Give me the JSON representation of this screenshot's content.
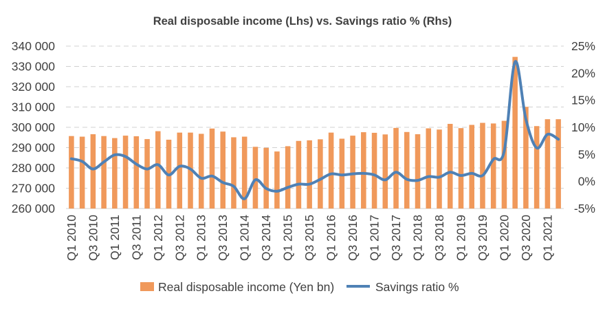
{
  "chart_data": {
    "type": "bar+line",
    "title": "Real disposable income (Lhs) vs. Savings ratio % (Rhs)",
    "x": [
      "Q1 2010",
      "Q2 2010",
      "Q3 2010",
      "Q4 2010",
      "Q1 2011",
      "Q2 2011",
      "Q3 2011",
      "Q4 2011",
      "Q1 2012",
      "Q2 2012",
      "Q3 2012",
      "Q4 2012",
      "Q1 2013",
      "Q2 2013",
      "Q3 2013",
      "Q4 2013",
      "Q1 2014",
      "Q2 2014",
      "Q3 2014",
      "Q4 2014",
      "Q1 2015",
      "Q2 2015",
      "Q3 2015",
      "Q4 2015",
      "Q1 2016",
      "Q2 2016",
      "Q3 2016",
      "Q4 2016",
      "Q1 2017",
      "Q2 2017",
      "Q3 2017",
      "Q4 2017",
      "Q1 2018",
      "Q2 2018",
      "Q3 2018",
      "Q4 2018",
      "Q1 2019",
      "Q2 2019",
      "Q3 2019",
      "Q4 2019",
      "Q1 2020",
      "Q2 2020",
      "Q3 2020",
      "Q4 2020",
      "Q1 2021",
      "Q2 2021"
    ],
    "x_tick_labels": [
      "Q1 2010",
      "Q3 2010",
      "Q1 2011",
      "Q3 2011",
      "Q1 2012",
      "Q3 2012",
      "Q1 2013",
      "Q3 2013",
      "Q1 2014",
      "Q3 2014",
      "Q1 2015",
      "Q3 2015",
      "Q1 2016",
      "Q3 2016",
      "Q1 2017",
      "Q3 2017",
      "Q1 2018",
      "Q3 2018",
      "Q1 2019",
      "Q3 2019",
      "Q1 2020",
      "Q3 2020",
      "Q1 2021"
    ],
    "series": [
      {
        "name": "Real disposable income (Yen bn)",
        "type": "bar",
        "axis": "left",
        "color": "#f0995b",
        "values": [
          295700,
          295400,
          296600,
          295700,
          294700,
          295900,
          295600,
          294200,
          298100,
          293900,
          297400,
          297400,
          296800,
          299400,
          297900,
          295100,
          295400,
          290400,
          289900,
          288100,
          290700,
          293300,
          293600,
          294100,
          297400,
          294400,
          295900,
          297600,
          297300,
          296500,
          299700,
          297700,
          296600,
          299500,
          298900,
          301700,
          299600,
          301200,
          302200,
          301900,
          303200,
          334700,
          310100,
          300600,
          304000,
          304000
        ]
      },
      {
        "name": "Savings ratio %",
        "type": "line",
        "axis": "right",
        "color": "#4f81b5",
        "values": [
          4.2,
          3.7,
          2.3,
          3.6,
          4.9,
          4.6,
          3.2,
          2.3,
          3.1,
          1.2,
          2.8,
          2.3,
          0.6,
          1.0,
          -0.2,
          -0.9,
          -3.2,
          0.3,
          -1.3,
          -1.8,
          -1.1,
          -0.5,
          -0.5,
          0.4,
          1.4,
          1.2,
          1.4,
          1.5,
          1.2,
          0.3,
          1.7,
          0.4,
          0.2,
          0.9,
          0.8,
          1.7,
          1.1,
          1.5,
          1.1,
          4.1,
          5.6,
          22.1,
          11.5,
          6.2,
          8.7,
          7.8
        ]
      }
    ],
    "y_left": {
      "ticks": [
        "260 000",
        "270 000",
        "280 000",
        "290 000",
        "300 000",
        "310 000",
        "320 000",
        "330 000",
        "340 000"
      ],
      "min": 260000,
      "max": 340000
    },
    "y_right": {
      "ticks": [
        "-5%",
        "0%",
        "5%",
        "10%",
        "15%",
        "20%",
        "25%"
      ],
      "min": -5,
      "max": 25
    },
    "grid": "horizontal dashed",
    "legend_position": "bottom"
  }
}
